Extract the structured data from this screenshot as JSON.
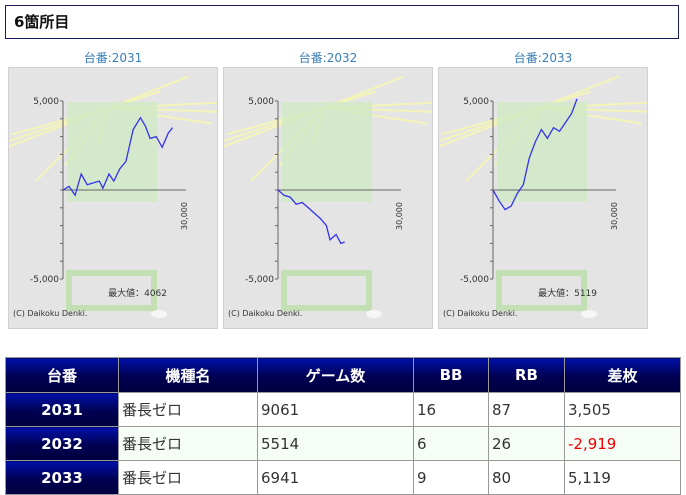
{
  "title": "6箇所目",
  "graphs": [
    {
      "label": "台番:2031",
      "max_label": "最大値：4062",
      "copyright": "(C) Daikoku Denki.",
      "y_ticks": [
        "5,000",
        "-5,000"
      ],
      "x_tick": "30,000",
      "series": [
        [
          0,
          0
        ],
        [
          500,
          200
        ],
        [
          1000,
          -300
        ],
        [
          1500,
          900
        ],
        [
          2000,
          300
        ],
        [
          2500,
          400
        ],
        [
          3000,
          500
        ],
        [
          3300,
          100
        ],
        [
          3800,
          900
        ],
        [
          4200,
          500
        ],
        [
          4700,
          1200
        ],
        [
          5200,
          1600
        ],
        [
          5800,
          3400
        ],
        [
          6400,
          4062
        ],
        [
          6800,
          3600
        ],
        [
          7200,
          2900
        ],
        [
          7700,
          3000
        ],
        [
          8200,
          2400
        ],
        [
          8700,
          3200
        ],
        [
          9061,
          3505
        ]
      ]
    },
    {
      "label": "台番:2032",
      "max_label": "",
      "copyright": "(C) Daikoku Denki.",
      "y_ticks": [
        "5,000",
        "-5,000"
      ],
      "x_tick": "30,000",
      "series": [
        [
          0,
          0
        ],
        [
          500,
          -300
        ],
        [
          1000,
          -400
        ],
        [
          1500,
          -800
        ],
        [
          2000,
          -700
        ],
        [
          2500,
          -1000
        ],
        [
          3000,
          -1300
        ],
        [
          3500,
          -1600
        ],
        [
          4000,
          -2000
        ],
        [
          4300,
          -2800
        ],
        [
          4800,
          -2500
        ],
        [
          5200,
          -3000
        ],
        [
          5514,
          -2919
        ]
      ]
    },
    {
      "label": "台番:2033",
      "max_label": "最大値：5119",
      "copyright": "(C) Daikoku Denki.",
      "y_ticks": [
        "5,000",
        "-5,000"
      ],
      "x_tick": "30,000",
      "series": [
        [
          0,
          0
        ],
        [
          500,
          -600
        ],
        [
          1000,
          -1100
        ],
        [
          1500,
          -900
        ],
        [
          2000,
          -200
        ],
        [
          2500,
          300
        ],
        [
          3000,
          1800
        ],
        [
          3500,
          2700
        ],
        [
          4000,
          3400
        ],
        [
          4500,
          2900
        ],
        [
          5000,
          3500
        ],
        [
          5500,
          3300
        ],
        [
          6000,
          3800
        ],
        [
          6500,
          4300
        ],
        [
          6941,
          5119
        ]
      ]
    }
  ],
  "colors": {
    "line": "#3333ee",
    "negative": "#ee0000",
    "header": "#000050"
  },
  "table": {
    "headers": [
      "台番",
      "機種名",
      "ゲーム数",
      "BB",
      "RB",
      "差枚"
    ],
    "rows": [
      [
        "2031",
        "番長ゼロ",
        "9061",
        "16",
        "87",
        "3,505"
      ],
      [
        "2032",
        "番長ゼロ",
        "5514",
        "6",
        "26",
        "-2,919"
      ],
      [
        "2033",
        "番長ゼロ",
        "6941",
        "9",
        "80",
        "5,119"
      ]
    ]
  }
}
